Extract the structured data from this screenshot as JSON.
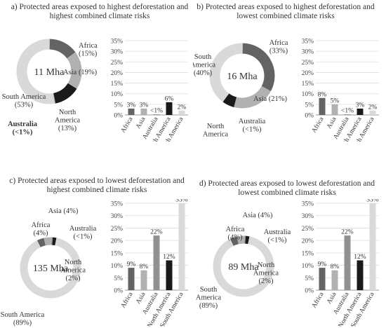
{
  "colors": {
    "africa": "#636363",
    "asia": "#b1b1b1",
    "australia": "#919191",
    "north_america": "#1a1a1a",
    "south_america": "#d9d9d9",
    "grid": "#dddddd",
    "axis": "#9a9a9a"
  },
  "chart_data": [
    {
      "type": "pie",
      "panel": "a",
      "title": "a) Protected areas exposed to highest deforestation and highest combined climate risks",
      "center_label": "11 Mha",
      "slices": [
        {
          "name": "Africa",
          "value": 15,
          "label": "Africa\n(15%)"
        },
        {
          "name": "Asia",
          "value": 19,
          "label": "Asia (19%)"
        },
        {
          "name": "North America",
          "value": 13,
          "label": "North\nAmerica\n(13%)"
        },
        {
          "name": "Australia",
          "value": 0.3,
          "label": "Australia\n(<1%)"
        },
        {
          "name": "South America",
          "value": 53,
          "label": "South America\n(53%)"
        }
      ]
    },
    {
      "type": "bar",
      "panel": "a",
      "categories": [
        "Africa",
        "Asia",
        "Australia",
        "North America",
        "South America"
      ],
      "values": [
        3,
        3,
        0.3,
        6,
        2
      ],
      "data_labels": [
        "3%",
        "3%",
        "<1%",
        "6%",
        "2%"
      ],
      "yticks": [
        "0%",
        "5%",
        "10%",
        "15%",
        "20%",
        "25%",
        "30%",
        "35%"
      ],
      "ylim": [
        0,
        35
      ]
    },
    {
      "type": "pie",
      "panel": "b",
      "title": "b) Protected areas exposed to highest deforestation and lowest combined climate risks",
      "center_label": "16 Mha",
      "slices": [
        {
          "name": "Africa",
          "value": 33,
          "label": "Africa\n(33%)"
        },
        {
          "name": "Asia",
          "value": 21,
          "label": "Asia (21%)"
        },
        {
          "name": "Australia",
          "value": 0.3,
          "label": "Australia\n(<1%)"
        },
        {
          "name": "North America",
          "value": 6,
          "label": "North\nAmerica\n(6%)"
        },
        {
          "name": "South America",
          "value": 40,
          "label": "South\nAmerica\n(40%)"
        }
      ]
    },
    {
      "type": "bar",
      "panel": "b",
      "categories": [
        "Africa",
        "Asia",
        "Australia",
        "North America",
        "South America"
      ],
      "values": [
        8,
        5,
        0.3,
        3,
        2
      ],
      "data_labels": [
        "8%",
        "5%",
        "<1%",
        "3%",
        "2%"
      ],
      "yticks": [
        "0%",
        "5%",
        "10%",
        "15%",
        "20%",
        "25%",
        "30%",
        "35%"
      ],
      "ylim": [
        0,
        35
      ]
    },
    {
      "type": "pie",
      "panel": "c",
      "title": "c) Protected areas exposed to lowest deforestation and highest combined climate risks",
      "center_label": "135 Mha",
      "slices": [
        {
          "name": "Africa",
          "value": 4,
          "label": "Africa\n(4%)"
        },
        {
          "name": "Asia",
          "value": 4,
          "label": "Asia (4%)"
        },
        {
          "name": "Australia",
          "value": 0.6,
          "label": "Australia\n(<1%)"
        },
        {
          "name": "North America",
          "value": 2,
          "label": "North\nAmerica\n(2%)"
        },
        {
          "name": "South America",
          "value": 89,
          "label": "South America\n(89%)"
        }
      ]
    },
    {
      "type": "bar",
      "panel": "c",
      "categories": [
        "Africa",
        "Asia",
        "Australia",
        "North America",
        "South America"
      ],
      "values": [
        9,
        8,
        22,
        12,
        35
      ],
      "data_labels": [
        "9%",
        "8%",
        "22%",
        "12%",
        "35%"
      ],
      "yticks": [
        "0%",
        "5%",
        "10%",
        "15%",
        "20%",
        "25%",
        "30%",
        "35%"
      ],
      "ylim": [
        0,
        35
      ]
    },
    {
      "type": "pie",
      "panel": "d",
      "title": "d) Protected areas exposed to lowest deforestation and lowest combined climate risks",
      "center_label": "89 Mha",
      "slices": [
        {
          "name": "Africa",
          "value": 4,
          "label": "Africa\n(4%)"
        },
        {
          "name": "Asia",
          "value": 4,
          "label": "Asia (4%)"
        },
        {
          "name": "Australia",
          "value": 0.6,
          "label": "Australia\n(<1%)"
        },
        {
          "name": "North America",
          "value": 2,
          "label": "North\nAmerica\n(2%)"
        },
        {
          "name": "South America",
          "value": 89,
          "label": "South\nAmerica\n(89%)"
        }
      ]
    },
    {
      "type": "bar",
      "panel": "d",
      "categories": [
        "Africa",
        "Asia",
        "Australia",
        "North America",
        "South America"
      ],
      "values": [
        9,
        8,
        22,
        12,
        35
      ],
      "data_labels": [
        "9%",
        "8%",
        "22%",
        "12%",
        "35%"
      ],
      "yticks": [
        "0%",
        "5%",
        "10%",
        "15%",
        "20%",
        "25%",
        "30%",
        "35%"
      ],
      "ylim": [
        0,
        35
      ]
    }
  ]
}
